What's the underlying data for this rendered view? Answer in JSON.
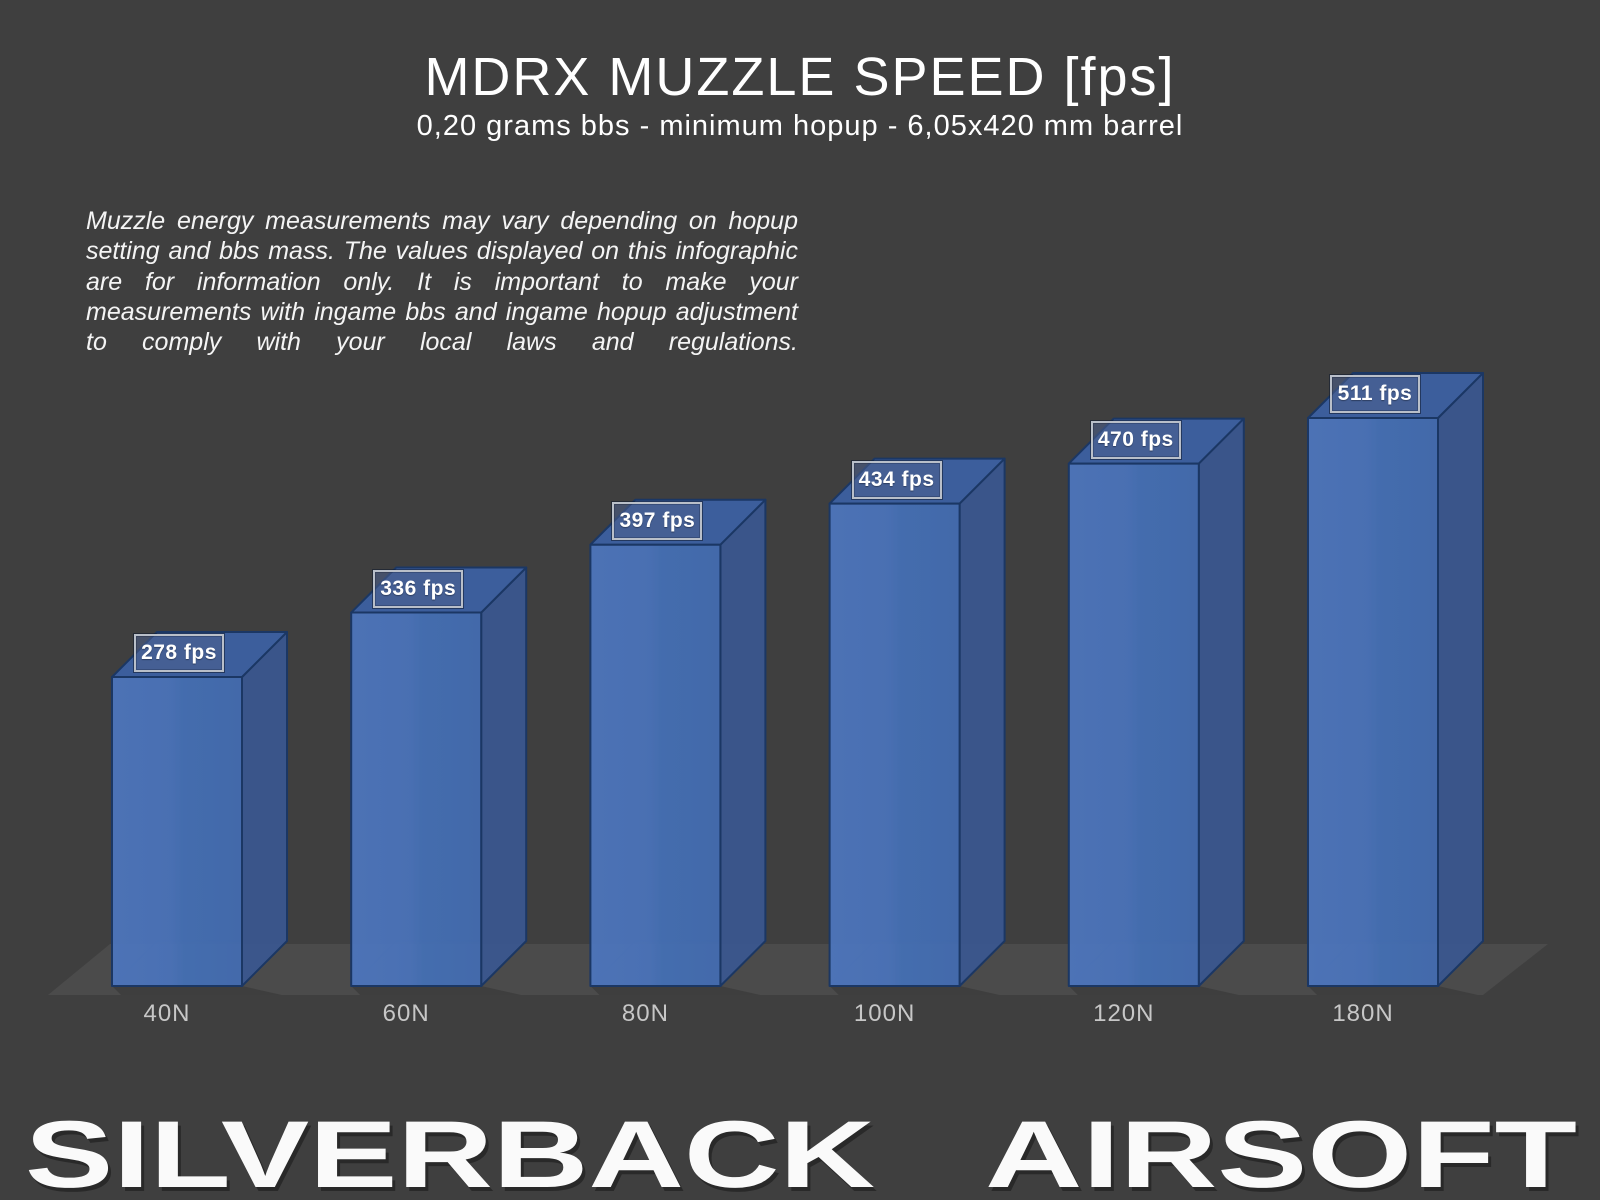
{
  "title": "MDRX MUZZLE SPEED [fps]",
  "subtitle": "0,20 grams bbs - minimum hopup - 6,05x420 mm barrel",
  "disclaimer": "Muzzle energy measurements may vary depending on hopup setting and bbs mass. The values displayed on this infographic are for information only. It is important to make your measurements with ingame bbs and ingame hopup adjustment to comply with your local laws and regulations.",
  "chart_data": {
    "type": "bar",
    "style": "3d-column",
    "title": "MDRX MUZZLE SPEED [fps]",
    "subtitle": "0,20 grams bbs - minimum hopup - 6,05x420 mm barrel",
    "categories": [
      "40N",
      "60N",
      "80N",
      "100N",
      "120N",
      "180N"
    ],
    "values": [
      278,
      336,
      397,
      434,
      470,
      511
    ],
    "value_labels": [
      "278 fps",
      "336 fps",
      "397 fps",
      "434 fps",
      "470 fps",
      "511 fps"
    ],
    "unit": "fps",
    "xlabel": "",
    "ylabel": "",
    "ylim": [
      0,
      511
    ],
    "grid": false,
    "legend": false,
    "colors": {
      "background": "#3f3f3f",
      "floor": "#4b4b4b",
      "bar_front_light": "#4d76be",
      "bar_front": "#4470b6",
      "bar_front_dark": "#436cb2",
      "bar_top": "#3c5f9f",
      "bar_side": "#3a568e",
      "bar_outline": "#1b3764",
      "label_box_fill": "#4c608e",
      "label_box_border": "#b9bfc9",
      "label_text": "#ffffff",
      "tick_text": "#c7c7c7",
      "title_text": "#ffffff"
    }
  },
  "footer": {
    "brand_left": "SILVERBACK",
    "brand_right": "AIRSOFT"
  }
}
